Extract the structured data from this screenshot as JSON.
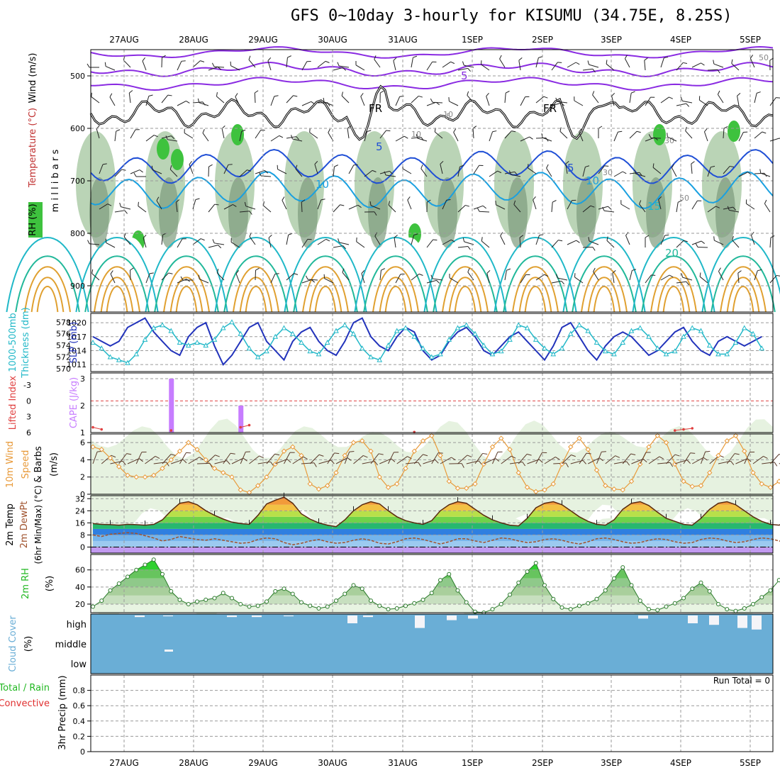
{
  "title": "GFS 0~10day 3-hourly for KISUMU (34.75E, 8.25S)",
  "colors": {
    "temp_neg": "#8a2be2",
    "temp_5": "#1f4fd6",
    "temp_10": "#1aa0e0",
    "temp_15": "#20b8c8",
    "temp_20": "#22b89a",
    "temp_warm": "#e0a030",
    "rh_light": "#e6f2e0",
    "rh_mid": "#a9c9a4",
    "rh_dark": "#7d9b7d",
    "rh_bright": "#3ec23e",
    "slp": "#2233bb",
    "thickness": "#22b8c8",
    "wind": "#e89a3a",
    "cape": "#c77dff",
    "lifted": "#e04040",
    "cloud": "#6aaed6",
    "dewpt": "#a0522d"
  },
  "chart_data": [
    {
      "type": "heatmap",
      "name": "upper-air",
      "ylabel": "m i l l i b a r s",
      "side_labels": [
        "Wind (m/s)",
        "Temperature (°C)",
        "RH (%)"
      ],
      "x_ticks": [
        "27AUG",
        "28AUG",
        "29AUG",
        "30AUG",
        "31AUG",
        "1SEP",
        "2SEP",
        "3SEP",
        "4SEP",
        "5SEP"
      ],
      "y_ticks": [
        500,
        600,
        700,
        800,
        900
      ],
      "ylim": [
        450,
        950
      ],
      "contour_labels": [
        "FR",
        "FR",
        "5",
        "5",
        "5",
        "10",
        "10",
        "15",
        "20",
        "10",
        "10",
        "30",
        "30",
        "50",
        "50",
        "-5"
      ],
      "grid": true
    },
    {
      "type": "line",
      "name": "slp-thickness",
      "side_labels": [
        "Thickness (dm)",
        "1000-500mb",
        "SLP (mb)"
      ],
      "left_ticks": [
        570,
        572,
        574,
        576,
        578
      ],
      "right_ticks": [
        1011,
        1014,
        1017,
        1020
      ],
      "series": [
        {
          "name": "SLP",
          "values": [
            1017,
            1016,
            1015,
            1016,
            1019,
            1020,
            1021,
            1018,
            1016,
            1014,
            1013,
            1017,
            1019,
            1020,
            1015,
            1011,
            1013,
            1016,
            1019,
            1020,
            1016,
            1014,
            1012,
            1016,
            1018,
            1019,
            1016,
            1014,
            1013,
            1016,
            1020,
            1021,
            1017,
            1015,
            1014,
            1017,
            1019,
            1018,
            1014,
            1012,
            1013,
            1016,
            1018,
            1019,
            1017,
            1014,
            1013,
            1015,
            1017,
            1018,
            1016,
            1014,
            1012,
            1015,
            1019,
            1020,
            1017,
            1014,
            1012,
            1015,
            1017,
            1018,
            1017,
            1015,
            1013,
            1014,
            1016,
            1018,
            1019,
            1016,
            1014,
            1013,
            1016,
            1017,
            1016,
            1015,
            1016,
            1017
          ]
        },
        {
          "name": "Thickness",
          "values": [
            574.5,
            573.5,
            572,
            571.5,
            571,
            572.5,
            575,
            577,
            577.5,
            576.5,
            574.5,
            574,
            574.5,
            574,
            575,
            577,
            578,
            576,
            573.5,
            572,
            573,
            575.5,
            577,
            576,
            574.5,
            573,
            572.5,
            574.5,
            576.5,
            577.5,
            576,
            573.5,
            572,
            571.5,
            574,
            576.5,
            577,
            575.5,
            573.5,
            572,
            572.5,
            575,
            577,
            577.5,
            576,
            574,
            572.5,
            573,
            575,
            577.5,
            577,
            575,
            573.5,
            572.5,
            573.5,
            576,
            577.5,
            576.5,
            574.5,
            573,
            572.5,
            574.5,
            576.5,
            577,
            575.5,
            573.5,
            572.5,
            573,
            575.5,
            577,
            576.5,
            574,
            572.5,
            572.5,
            574.5,
            577,
            576,
            573.5
          ]
        }
      ]
    },
    {
      "type": "bar",
      "name": "cape-lifted",
      "side_labels": [
        "Lifted Index",
        "CAPE (J/kg)"
      ],
      "left_ticks": [
        "-3",
        "0",
        "3",
        "6"
      ],
      "right_ticks": [
        "1",
        "2",
        "3"
      ],
      "cape_bars": [
        {
          "x_step": 9,
          "value": 3.0
        },
        {
          "x_step": 17,
          "value": 2.0
        }
      ],
      "lifted_series": [
        {
          "name": "Lifted Index",
          "values": [
            5.0,
            5.4,
            6,
            6,
            6,
            6,
            6,
            6,
            6,
            5.6,
            6,
            6,
            6,
            6,
            6,
            6,
            6,
            5.0,
            4.6,
            6,
            6,
            6,
            6,
            6,
            6,
            6,
            6,
            6,
            6,
            6,
            6,
            6,
            6,
            6,
            6,
            6,
            6,
            5.9,
            6,
            6,
            6,
            6,
            6,
            6,
            6,
            6,
            6,
            6,
            6,
            6,
            6,
            6,
            6,
            6,
            6,
            6,
            6,
            6,
            6,
            6,
            6,
            6,
            6,
            6,
            6,
            6,
            6,
            5.6,
            5.4,
            5.2,
            6,
            6,
            6,
            6,
            6,
            6,
            6,
            6
          ]
        }
      ]
    },
    {
      "type": "line",
      "name": "10m-wind",
      "side_labels": [
        "10m Wind",
        "Speed",
        "& Barbs",
        "(m/s)"
      ],
      "y_ticks": [
        0,
        2,
        4,
        6
      ],
      "ylim": [
        0,
        7
      ],
      "series": [
        {
          "name": "10m Wind Speed",
          "values": [
            5.5,
            5.2,
            4.2,
            3.2,
            2.2,
            2.0,
            2.0,
            2.2,
            3.0,
            4.0,
            5.0,
            6.0,
            5.2,
            4.0,
            3.0,
            2.5,
            2.0,
            0.5,
            0.2,
            1.0,
            2.0,
            3.5,
            5.0,
            5.5,
            4.5,
            1.2,
            0.6,
            1.0,
            2.5,
            4.5,
            6.0,
            6.2,
            5.0,
            2.0,
            0.8,
            1.2,
            3.0,
            5.0,
            6.2,
            6.8,
            4.5,
            1.5,
            0.7,
            0.7,
            1.2,
            3.5,
            5.5,
            6.5,
            5.2,
            2.5,
            0.8,
            0.3,
            0.5,
            1.2,
            3.5,
            5.5,
            6.5,
            5.2,
            2.8,
            1.0,
            0.6,
            0.5,
            1.5,
            3.5,
            5.5,
            6.8,
            6.0,
            3.5,
            1.5,
            0.9,
            1.0,
            2.5,
            4.5,
            6.2,
            6.8,
            5.0,
            2.5,
            1.2,
            0.8,
            1.5,
            3.2,
            5.2,
            6.2,
            5.5,
            3.5,
            1.8,
            0.5,
            0.6
          ]
        }
      ]
    },
    {
      "type": "area",
      "name": "2m-temperature",
      "side_labels": [
        "2m Temp",
        "2m DewPt",
        "(6hr Min/Max) (°C)"
      ],
      "y_ticks": [
        0,
        8,
        16,
        24,
        32
      ],
      "ylim": [
        -4,
        34
      ],
      "series": [
        {
          "name": "2m Temp",
          "values": [
            15.5,
            15,
            14.8,
            14.5,
            15,
            14.8,
            14.5,
            15,
            18,
            24,
            29,
            30,
            28,
            24,
            21,
            18.5,
            16.5,
            15.5,
            15,
            21,
            28.5,
            31,
            33,
            29,
            22,
            18.5,
            16,
            14.5,
            13.5,
            18,
            24,
            28,
            30,
            28.5,
            24,
            20,
            17.5,
            16,
            15,
            17.5,
            24,
            28,
            30,
            29,
            25,
            21,
            18,
            16,
            14.5,
            14,
            19,
            26,
            29,
            30,
            28,
            24,
            20,
            17,
            15,
            14.5,
            18,
            25,
            29,
            30,
            27.5,
            23,
            19,
            17,
            15,
            14.5,
            19,
            25,
            29,
            30,
            28,
            24,
            20,
            17,
            15,
            14.5,
            18,
            25,
            29,
            30,
            28,
            24,
            19,
            15
          ]
        },
        {
          "name": "2m DewPt",
          "values": [
            8,
            7,
            8.5,
            9,
            9.5,
            9,
            7.5,
            6,
            4,
            5,
            7,
            6,
            5,
            4.5,
            5.5,
            4.5,
            3.5,
            2.5,
            3,
            5,
            6,
            5.5,
            3,
            1.5,
            2.5,
            4,
            5,
            3.5,
            2.5,
            3,
            4.5,
            5.5,
            4.5,
            2.5,
            2,
            3.5,
            5.5,
            6,
            5,
            3.5,
            2,
            3.5,
            5.5,
            5.5,
            4,
            3,
            4.5,
            6,
            5.5,
            4,
            3,
            3.5,
            5,
            5.5,
            4.5,
            3,
            2,
            3.5,
            5.5,
            6,
            5,
            3.5,
            2.5,
            3,
            4.5,
            5.5,
            5,
            3.5,
            2.5,
            3,
            5,
            6,
            5.5,
            4,
            3,
            3.5,
            5,
            6,
            5.5,
            4,
            3,
            3.5,
            5,
            6,
            6,
            5,
            4,
            4
          ]
        }
      ]
    },
    {
      "type": "area",
      "name": "2m-rh",
      "side_labels": [
        "2m RH",
        "(%)"
      ],
      "y_ticks": [
        20,
        40,
        60
      ],
      "ylim": [
        10,
        78
      ],
      "series": [
        {
          "name": "2m RH",
          "values": [
            17,
            24,
            36,
            44,
            52,
            60,
            66,
            72,
            55,
            35,
            25,
            20,
            23,
            25,
            27,
            33,
            27,
            20,
            17,
            18,
            23,
            35,
            38,
            32,
            22,
            18,
            15,
            17,
            24,
            32,
            42,
            38,
            24,
            18,
            14,
            15,
            18,
            21,
            25,
            33,
            48,
            55,
            36,
            22,
            11,
            10,
            14,
            20,
            31,
            45,
            58,
            68,
            42,
            26,
            16,
            14,
            18,
            21,
            26,
            36,
            50,
            63,
            42,
            24,
            14,
            13,
            17,
            21,
            27,
            38,
            45,
            35,
            20,
            14,
            12,
            15,
            20,
            28,
            36,
            48,
            56,
            46,
            28,
            16,
            12,
            13,
            18,
            30
          ]
        }
      ]
    },
    {
      "type": "bar",
      "name": "cloud-cover",
      "side_labels": [
        "Cloud Cover",
        "(%)"
      ],
      "levels": [
        "high",
        "middle",
        "low"
      ]
    },
    {
      "type": "bar",
      "name": "precipitation",
      "side_labels": [
        "3hr Precip (mm)",
        "Total / Rain",
        "Convective"
      ],
      "y_ticks": [
        "0",
        "0.2",
        "0.4",
        "0.6",
        "0.8"
      ],
      "ylim": [
        0,
        1
      ],
      "run_total_label": "Run Total = 0",
      "values": []
    }
  ]
}
